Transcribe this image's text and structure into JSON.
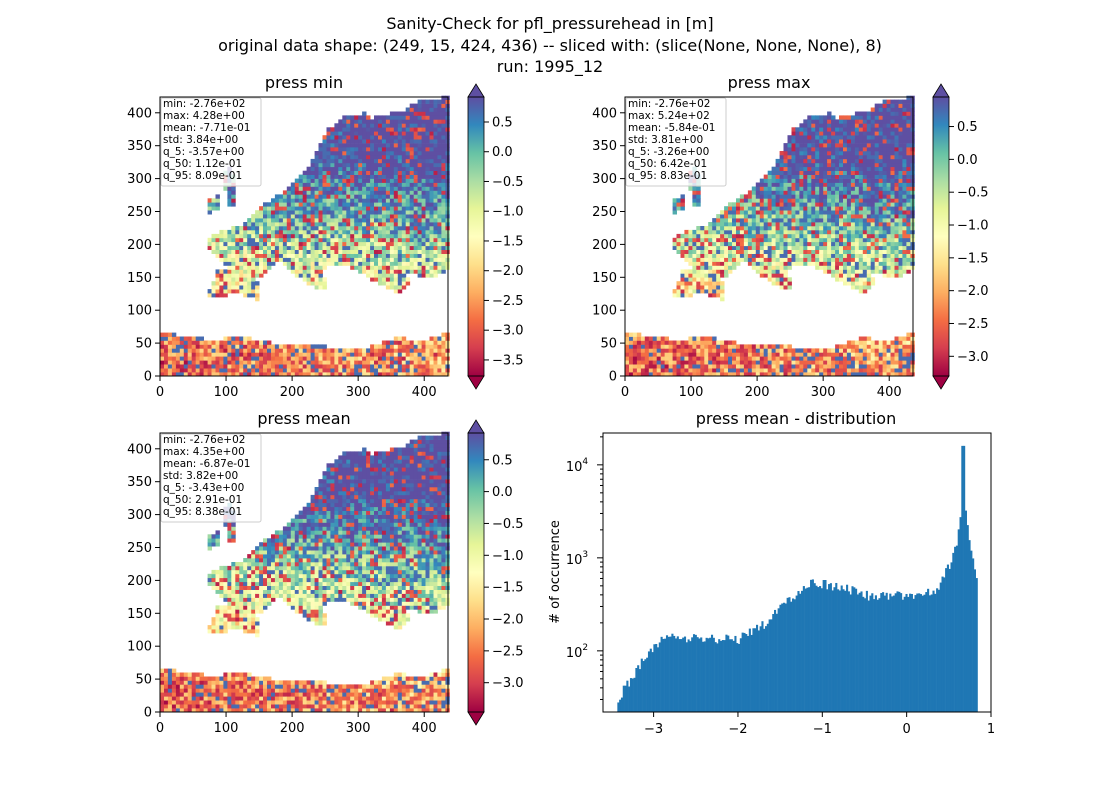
{
  "figure": {
    "suptitle_lines": [
      "Sanity-Check for pfl_pressurehead in [m]",
      "original data shape: (249, 15, 424, 436) -- sliced with: (slice(None, None, None), 8)",
      "run: 1995_12"
    ]
  },
  "colors": {
    "colormap": [
      "#9e0142",
      "#d53e4f",
      "#f46d43",
      "#fdae61",
      "#fee08b",
      "#ffffbf",
      "#e6f598",
      "#abdda4",
      "#66c2a5",
      "#3288bd",
      "#5e4fa2"
    ],
    "histogram_bar": "#1f77b4"
  },
  "chart_data": [
    {
      "type": "heatmap",
      "title": "press min",
      "xlim": [
        0,
        436
      ],
      "ylim": [
        0,
        424
      ],
      "xticks": [
        0,
        100,
        200,
        300,
        400
      ],
      "yticks": [
        0,
        50,
        100,
        150,
        200,
        250,
        300,
        350,
        400
      ],
      "colorbar": {
        "range": [
          -3.77,
          0.92
        ],
        "ticks": [
          0.5,
          0.0,
          -0.5,
          -1.0,
          -1.5,
          -2.0,
          -2.5,
          -3.0,
          -3.5
        ]
      },
      "stats": [
        "min: -2.76e+02",
        "max: 4.28e+00",
        "mean: -7.71e-01",
        "std: 3.84e+00",
        "q_5: -3.57e+00",
        "q_50: 1.12e-01",
        "q_95: 8.09e-01"
      ]
    },
    {
      "type": "heatmap",
      "title": "press max",
      "xlim": [
        0,
        436
      ],
      "ylim": [
        0,
        424
      ],
      "xticks": [
        0,
        100,
        200,
        300,
        400
      ],
      "yticks": [
        0,
        50,
        100,
        150,
        200,
        250,
        300,
        350,
        400
      ],
      "colorbar": {
        "range": [
          -3.3,
          0.95
        ],
        "ticks": [
          0.5,
          0.0,
          -0.5,
          -1.0,
          -1.5,
          -2.0,
          -2.5,
          -3.0
        ]
      },
      "stats": [
        "min: -2.76e+02",
        "max: 5.24e+02",
        "mean: -5.84e-01",
        "std: 3.81e+00",
        "q_5: -3.26e+00",
        "q_50: 6.42e-01",
        "q_95: 8.83e-01"
      ]
    },
    {
      "type": "heatmap",
      "title": "press mean",
      "xlim": [
        0,
        436
      ],
      "ylim": [
        0,
        424
      ],
      "xticks": [
        0,
        100,
        200,
        300,
        400
      ],
      "yticks": [
        0,
        50,
        100,
        150,
        200,
        250,
        300,
        350,
        400
      ],
      "colorbar": {
        "range": [
          -3.46,
          0.92
        ],
        "ticks": [
          0.5,
          0.0,
          -0.5,
          -1.0,
          -1.5,
          -2.0,
          -2.5,
          -3.0
        ]
      },
      "stats": [
        "min: -2.76e+02",
        "max: 4.35e+00",
        "mean: -6.87e-01",
        "std: 3.82e+00",
        "q_5: -3.43e+00",
        "q_50: 2.91e-01",
        "q_95: 8.38e-01"
      ]
    },
    {
      "type": "bar",
      "title": "press mean - distribution",
      "ylabel": "# of occurrence",
      "yscale": "log",
      "xlim": [
        -3.6,
        1.0
      ],
      "ylim": [
        22,
        22000
      ],
      "xticks": [
        -3,
        -2,
        -1,
        0,
        1
      ],
      "yticks": [
        100,
        1000,
        10000
      ],
      "anchors": [
        [
          -3.43,
          30
        ],
        [
          -3.3,
          45
        ],
        [
          -3.1,
          85
        ],
        [
          -3.0,
          110
        ],
        [
          -2.9,
          135
        ],
        [
          -2.7,
          140
        ],
        [
          -2.5,
          140
        ],
        [
          -2.3,
          135
        ],
        [
          -2.1,
          135
        ],
        [
          -2.0,
          130
        ],
        [
          -1.9,
          150
        ],
        [
          -1.7,
          190
        ],
        [
          -1.6,
          230
        ],
        [
          -1.4,
          350
        ],
        [
          -1.2,
          460
        ],
        [
          -1.1,
          560
        ],
        [
          -1.0,
          530
        ],
        [
          -0.8,
          480
        ],
        [
          -0.6,
          440
        ],
        [
          -0.4,
          380
        ],
        [
          -0.35,
          370
        ],
        [
          -0.2,
          400
        ],
        [
          0.0,
          390
        ],
        [
          0.2,
          410
        ],
        [
          0.35,
          430
        ],
        [
          0.4,
          560
        ],
        [
          0.5,
          800
        ],
        [
          0.6,
          1500
        ],
        [
          0.65,
          4000
        ],
        [
          0.67,
          16000
        ],
        [
          0.7,
          3500
        ],
        [
          0.75,
          1500
        ],
        [
          0.8,
          800
        ],
        [
          0.84,
          500
        ]
      ]
    }
  ]
}
